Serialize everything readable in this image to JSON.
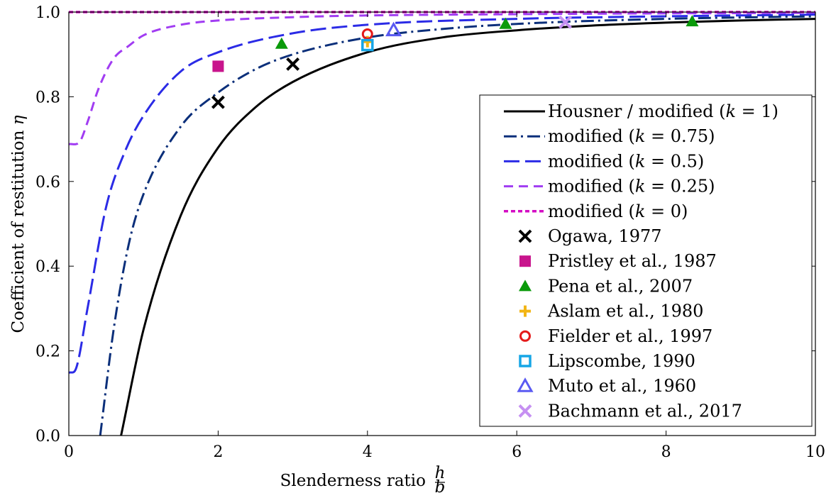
{
  "chart_data": {
    "type": "line",
    "xlabel": "Slenderness ratio h/b",
    "ylabel": "Coefficient of restitution η",
    "xlim": [
      0,
      10
    ],
    "ylim": [
      0,
      1
    ],
    "x_ticks": [
      "0",
      "2",
      "4",
      "6",
      "8",
      "10"
    ],
    "y_ticks": [
      "0.0",
      "0.2",
      "0.4",
      "0.6",
      "0.8",
      "1.0"
    ],
    "legend_position": "right",
    "series": [
      {
        "name": "Housner / modified (k = 1)",
        "k": 1,
        "color": "#000000",
        "dash": "solid",
        "x": [
          0.7,
          1,
          1.5,
          2,
          2.5,
          3,
          4,
          5,
          6,
          7,
          8,
          9,
          10
        ],
        "y": [
          0.0,
          0.25,
          0.52,
          0.68,
          0.775,
          0.835,
          0.905,
          0.94,
          0.957,
          0.968,
          0.975,
          0.98,
          0.984
        ]
      },
      {
        "name": "modified (k = 0.75)",
        "k": 0.75,
        "color": "#0b2f7a",
        "dash": "dashdot",
        "x": [
          0.42,
          0.6,
          0.8,
          1,
          1.5,
          2,
          2.5,
          3,
          4,
          5,
          6,
          8,
          10
        ],
        "y": [
          0.0,
          0.25,
          0.45,
          0.57,
          0.73,
          0.81,
          0.865,
          0.9,
          0.94,
          0.96,
          0.972,
          0.984,
          0.99
        ]
      },
      {
        "name": "modified (k = 0.5)",
        "k": 0.5,
        "color": "#2b2be6",
        "dash": "longdash",
        "x": [
          0,
          0.1,
          0.25,
          0.5,
          0.75,
          1,
          1.5,
          2,
          3,
          4,
          6,
          8,
          10
        ],
        "y": [
          0.148,
          0.16,
          0.3,
          0.54,
          0.67,
          0.755,
          0.86,
          0.905,
          0.95,
          0.97,
          0.984,
          0.99,
          0.994
        ]
      },
      {
        "name": "modified (k = 0.25)",
        "k": 0.25,
        "color": "#a13cf2",
        "dash": "dashed",
        "x": [
          0,
          0.15,
          0.25,
          0.4,
          0.6,
          0.8,
          1,
          1.5,
          2,
          3,
          4,
          6,
          8,
          10
        ],
        "y": [
          0.688,
          0.695,
          0.74,
          0.82,
          0.89,
          0.92,
          0.945,
          0.97,
          0.98,
          0.988,
          0.992,
          0.995,
          0.997,
          0.998
        ]
      },
      {
        "name": "modified (k = 0)",
        "k": 0,
        "color": "#d40ec4",
        "dash": "shortdash",
        "x": [
          0,
          10
        ],
        "y": [
          1.0,
          1.0
        ]
      }
    ],
    "experiments": [
      {
        "name": "Ogawa, 1977",
        "marker": "x",
        "color": "#000000",
        "points": [
          [
            2,
            0.787
          ],
          [
            3,
            0.877
          ]
        ]
      },
      {
        "name": "Pristley et al., 1987",
        "marker": "square",
        "color": "#c8148c",
        "points": [
          [
            2,
            0.872
          ]
        ]
      },
      {
        "name": "Pena et al., 2007",
        "marker": "triangle",
        "color": "#0a9a0a",
        "points": [
          [
            2.85,
            0.925
          ],
          [
            5.85,
            0.972
          ],
          [
            8.35,
            0.978
          ]
        ]
      },
      {
        "name": "Aslam et al., 1980",
        "marker": "plus",
        "color": "#f2b515",
        "points": [
          [
            4,
            0.93
          ]
        ]
      },
      {
        "name": "Fielder et al., 1997",
        "marker": "circle",
        "color": "#e41a1a",
        "points": [
          [
            4,
            0.948
          ]
        ]
      },
      {
        "name": "Lipscombe, 1990",
        "marker": "open-square",
        "color": "#17a6e6",
        "points": [
          [
            4,
            0.922
          ]
        ]
      },
      {
        "name": "Muto et al., 1960",
        "marker": "open-triangle",
        "color": "#5a5af2",
        "points": [
          [
            4.35,
            0.957
          ]
        ]
      },
      {
        "name": "Bachmann et al., 2017",
        "marker": "x",
        "color": "#c690f2",
        "points": [
          [
            6.65,
            0.976
          ]
        ]
      }
    ]
  },
  "legend": {
    "entries": [
      {
        "name": "Housner / modified (k = 1)",
        "prefix": "Housner / modified (",
        "k": "1"
      },
      {
        "name": "modified (k = 0.75)",
        "prefix": "modified (",
        "k": "0.75"
      },
      {
        "name": "modified (k = 0.5)",
        "prefix": "modified (",
        "k": "0.5"
      },
      {
        "name": "modified (k = 0.25)",
        "prefix": "modified (",
        "k": "0.25"
      },
      {
        "name": "modified (k = 0)",
        "prefix": "modified (",
        "k": "0"
      },
      {
        "name": "Ogawa, 1977"
      },
      {
        "name": "Pristley et al., 1987"
      },
      {
        "name": "Pena et al., 2007"
      },
      {
        "name": "Aslam et al., 1980"
      },
      {
        "name": "Fielder et al., 1997"
      },
      {
        "name": "Lipscombe, 1990"
      },
      {
        "name": "Muto et al., 1960"
      },
      {
        "name": "Bachmann et al., 2017"
      }
    ]
  }
}
